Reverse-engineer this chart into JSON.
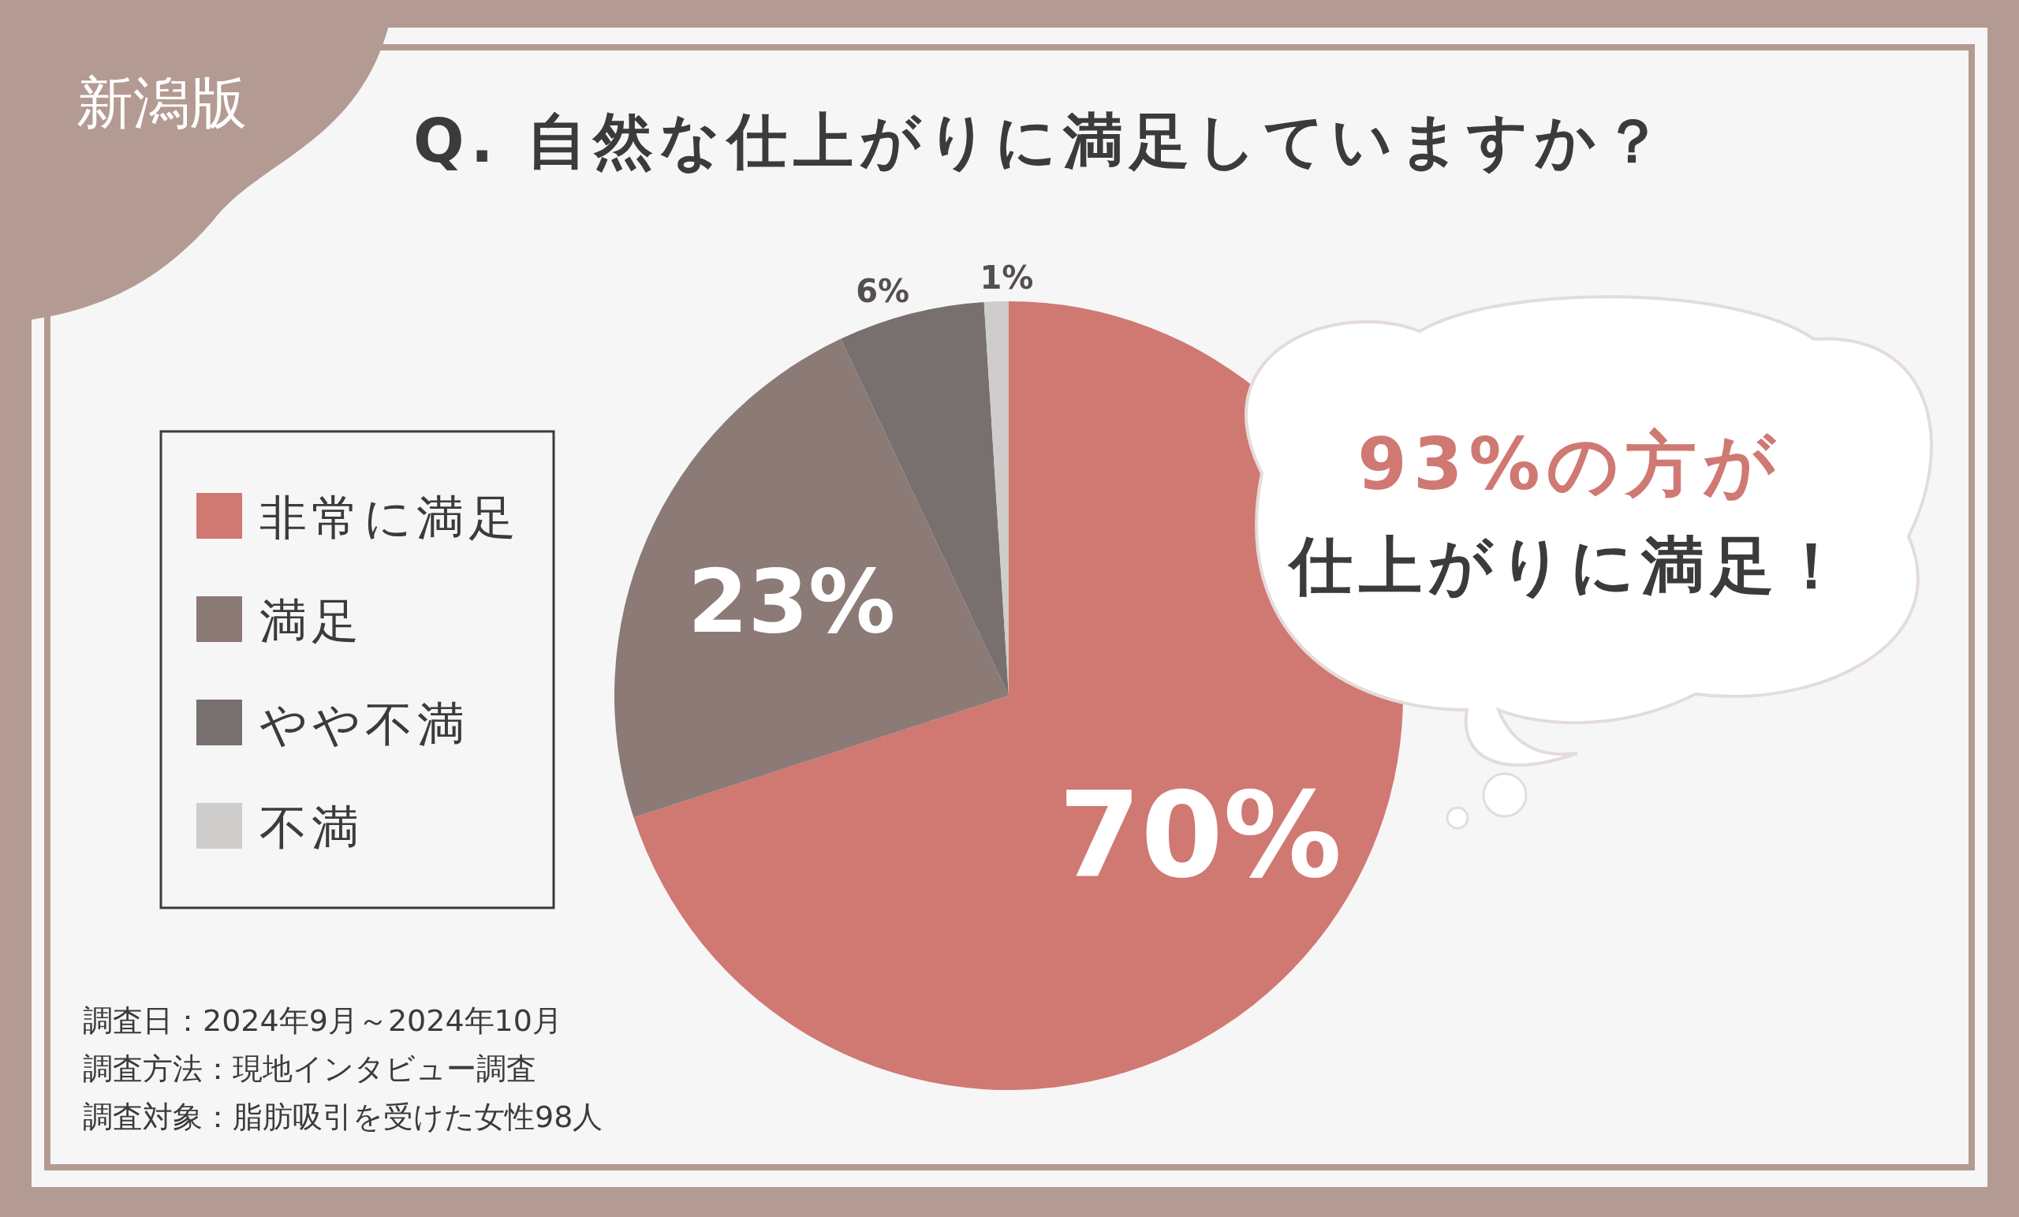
{
  "chart_data": {
    "type": "pie",
    "title": "Q. 自然な仕上がりに満足していますか？",
    "subtitle": "新潟版",
    "categories": [
      "非常に満足",
      "満足",
      "やや不満",
      "不満"
    ],
    "values": [
      70,
      23,
      6,
      1
    ],
    "colors": [
      "#d07872",
      "#8c7a76",
      "#77706f",
      "#cfcccc"
    ],
    "value_labels": [
      "70%",
      "23%",
      "6%",
      "1%"
    ],
    "legend": "left",
    "annotations": [
      "93%の方が",
      "仕上がりに満足！",
      "調査日：2024年9月～2024年10月",
      "調査方法：現地インタビュー調査",
      "調査対象：脂肪吸引を受けた女性98人"
    ]
  }
}
